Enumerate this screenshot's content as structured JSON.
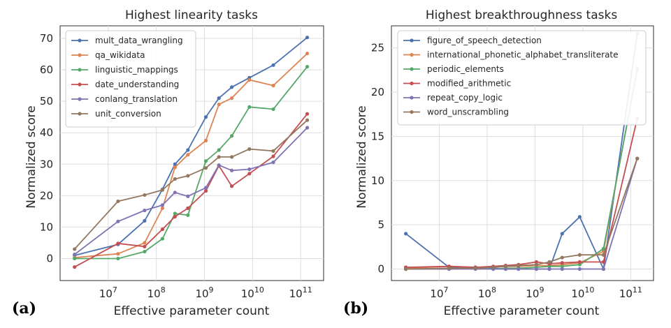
{
  "chart_data": [
    {
      "type": "line",
      "panel_label": "(a)",
      "title": "Highest linearity tasks",
      "xlabel": "Effective parameter count",
      "ylabel": "Normalized score",
      "x_scale": "log",
      "xlim": [
        1000000,
        300000000000
      ],
      "ylim": [
        -7,
        74
      ],
      "xticks": [
        10000000,
        100000000,
        1000000000,
        10000000000,
        100000000000
      ],
      "xtick_labels": [
        "10^7",
        "10^8",
        "10^9",
        "10^10",
        "10^11"
      ],
      "yticks": [
        0,
        10,
        20,
        30,
        40,
        50,
        60,
        70
      ],
      "ytick_labels": [
        "0",
        "10",
        "20",
        "30",
        "40",
        "50",
        "60",
        "70"
      ],
      "legend_position": "upper-left",
      "grid": true,
      "series": [
        {
          "name": "mult_data_wrangling",
          "color": "#4c72b0",
          "x": [
            2000000,
            16000000,
            57000000,
            134000000,
            244000000,
            453000000,
            1070000000,
            2000000000,
            3700000000,
            8600000000,
            27000000000,
            137000000000
          ],
          "y": [
            1,
            4.5,
            12,
            22,
            30,
            34.5,
            45,
            51,
            54.5,
            57.5,
            61.5,
            70.3
          ]
        },
        {
          "name": "qa_wikidata",
          "color": "#dd8452",
          "x": [
            2000000,
            16000000,
            57000000,
            134000000,
            244000000,
            453000000,
            1070000000,
            2000000000,
            3700000000,
            8600000000,
            27000000000,
            137000000000
          ],
          "y": [
            0.3,
            1.5,
            5,
            16,
            29,
            33,
            37.5,
            49,
            51,
            56.8,
            55,
            65.2
          ]
        },
        {
          "name": "linguistic_mappings",
          "color": "#55a868",
          "x": [
            2000000,
            16000000,
            57000000,
            134000000,
            244000000,
            453000000,
            1070000000,
            2000000000,
            3700000000,
            8600000000,
            27000000000,
            137000000000
          ],
          "y": [
            0,
            0,
            2.2,
            6.3,
            14.3,
            13.8,
            31,
            34.5,
            39,
            48.2,
            47.5,
            61
          ]
        },
        {
          "name": "date_understanding",
          "color": "#c44e52",
          "x": [
            2000000,
            16000000,
            57000000,
            134000000,
            244000000,
            453000000,
            1070000000,
            2000000000,
            3700000000,
            8600000000,
            27000000000,
            137000000000
          ],
          "y": [
            -2.7,
            4.8,
            3.8,
            9.3,
            13.3,
            16,
            21.5,
            29.5,
            23,
            27,
            32.5,
            46
          ]
        },
        {
          "name": "conlang_translation",
          "color": "#8172b3",
          "x": [
            2000000,
            16000000,
            57000000,
            134000000,
            244000000,
            453000000,
            1070000000,
            2000000000,
            3700000000,
            8600000000,
            27000000000,
            137000000000
          ],
          "y": [
            1.3,
            11.8,
            15.3,
            17,
            21,
            19.8,
            22.5,
            29.7,
            28,
            28.4,
            30.6,
            41.6
          ]
        },
        {
          "name": "unit_conversion",
          "color": "#937860",
          "x": [
            2000000,
            16000000,
            57000000,
            134000000,
            244000000,
            453000000,
            1070000000,
            2000000000,
            3700000000,
            8600000000,
            27000000000,
            137000000000
          ],
          "y": [
            3,
            18.2,
            20.2,
            21.8,
            25.3,
            26.3,
            28.8,
            32.3,
            32.3,
            34.8,
            34.2,
            44
          ]
        }
      ]
    },
    {
      "type": "line",
      "panel_label": "(b)",
      "title": "Highest breakthroughness tasks",
      "xlabel": "Effective parameter count",
      "ylabel": "Normalized score",
      "x_scale": "log",
      "xlim": [
        1000000,
        300000000000
      ],
      "ylim": [
        -1.3,
        27.5
      ],
      "xticks": [
        10000000,
        100000000,
        1000000000,
        10000000000,
        100000000000
      ],
      "xtick_labels": [
        "10^7",
        "10^8",
        "10^9",
        "10^10",
        "10^11"
      ],
      "yticks": [
        0,
        5,
        10,
        15,
        20,
        25
      ],
      "ytick_labels": [
        "0",
        "5",
        "10",
        "15",
        "20",
        "25"
      ],
      "legend_position": "upper-left",
      "grid": true,
      "series": [
        {
          "name": "figure_of_speech_detection",
          "color": "#4c72b0",
          "x": [
            2000000,
            16000000,
            57000000,
            134000000,
            244000000,
            453000000,
            1070000000,
            2000000000,
            3700000000,
            8600000000,
            27000000000,
            137000000000
          ],
          "y": [
            4,
            0.2,
            0.1,
            0.1,
            0,
            0,
            0,
            0,
            4,
            5.9,
            0,
            26.6
          ]
        },
        {
          "name": "international_phonetic_alphabet_transliterate",
          "color": "#dd8452",
          "x": [
            2000000,
            16000000,
            57000000,
            134000000,
            244000000,
            453000000,
            1070000000,
            2000000000,
            3700000000,
            8600000000,
            27000000000,
            137000000000
          ],
          "y": [
            0.1,
            0.3,
            0.2,
            0.2,
            0.3,
            0.3,
            0.4,
            0.4,
            0.5,
            0.7,
            2,
            22.7
          ]
        },
        {
          "name": "periodic_elements",
          "color": "#55a868",
          "x": [
            2000000,
            16000000,
            57000000,
            134000000,
            244000000,
            453000000,
            1070000000,
            2000000000,
            3700000000,
            8600000000,
            27000000000,
            137000000000
          ],
          "y": [
            0,
            0,
            0.1,
            0,
            0.1,
            0.1,
            0.2,
            0.3,
            0.3,
            0.5,
            2.3,
            22.5
          ]
        },
        {
          "name": "modified_arithmetic",
          "color": "#c44e52",
          "x": [
            2000000,
            16000000,
            57000000,
            134000000,
            244000000,
            453000000,
            1070000000,
            2000000000,
            3700000000,
            8600000000,
            27000000000,
            137000000000
          ],
          "y": [
            0.2,
            0.3,
            0.2,
            0.3,
            0.4,
            0.5,
            0.8,
            0.6,
            0.7,
            0.8,
            0.8,
            17
          ]
        },
        {
          "name": "repeat_copy_logic",
          "color": "#8172b3",
          "x": [
            2000000,
            16000000,
            57000000,
            134000000,
            244000000,
            453000000,
            1070000000,
            2000000000,
            3700000000,
            8600000000,
            27000000000,
            137000000000
          ],
          "y": [
            0,
            0,
            0,
            0,
            0,
            0,
            0,
            0,
            0,
            0,
            0,
            12.5
          ]
        },
        {
          "name": "word_unscrambling",
          "color": "#937860",
          "x": [
            2000000,
            16000000,
            57000000,
            134000000,
            244000000,
            453000000,
            1070000000,
            2000000000,
            3700000000,
            8600000000,
            27000000000,
            137000000000
          ],
          "y": [
            0,
            0.1,
            0.1,
            0.2,
            0.3,
            0.4,
            0.5,
            0.8,
            1.3,
            1.6,
            1.6,
            12.5
          ]
        }
      ]
    }
  ]
}
